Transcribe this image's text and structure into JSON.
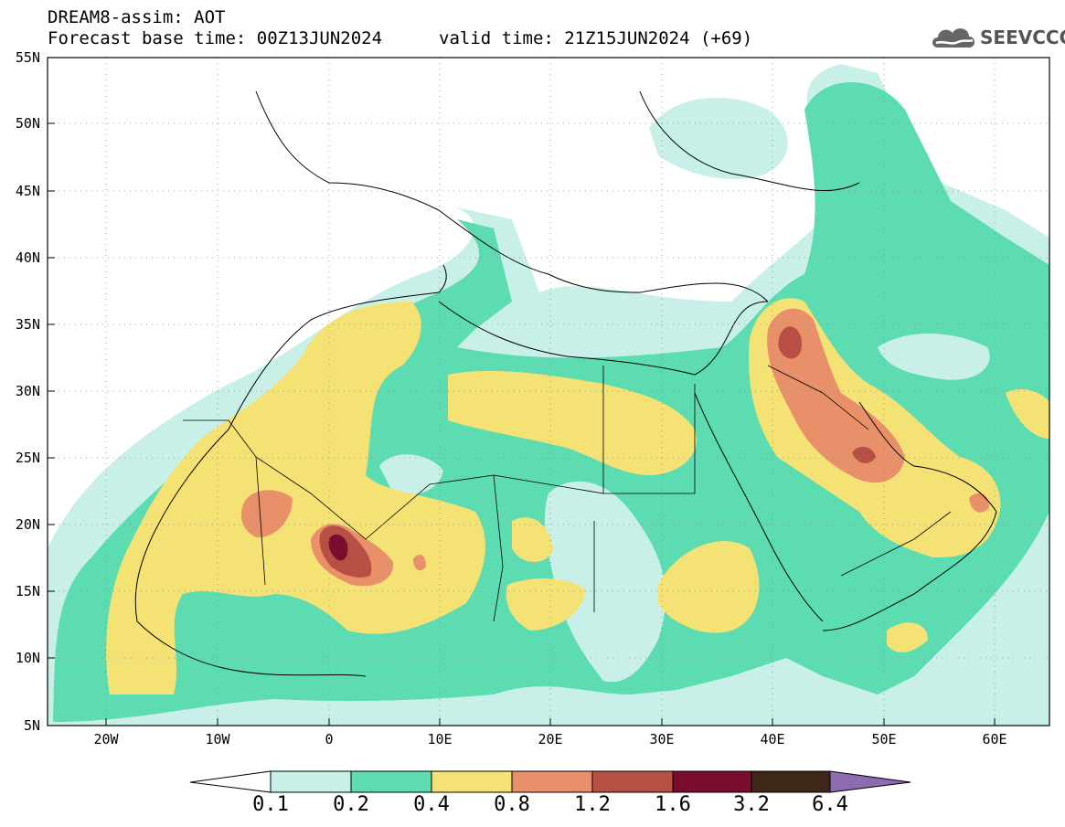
{
  "header": {
    "title": "DREAM8-assim: AOT",
    "base_time": "Forecast base time: 00Z13JUN2024",
    "valid_time": "valid time: 21Z15JUN2024 (+69)",
    "logo_text": "SEEVCCC"
  },
  "map": {
    "lon_range": [
      -25,
      65
    ],
    "lat_range": [
      5,
      55
    ],
    "lon_ticks": [
      {
        "value": -20,
        "label": "20W"
      },
      {
        "value": -10,
        "label": "10W"
      },
      {
        "value": 0,
        "label": "0"
      },
      {
        "value": 10,
        "label": "10E"
      },
      {
        "value": 20,
        "label": "20E"
      },
      {
        "value": 30,
        "label": "30E"
      },
      {
        "value": 40,
        "label": "40E"
      },
      {
        "value": 50,
        "label": "50E"
      },
      {
        "value": 60,
        "label": "60E"
      }
    ],
    "lat_ticks": [
      {
        "value": 5,
        "label": "5N"
      },
      {
        "value": 10,
        "label": "10N"
      },
      {
        "value": 15,
        "label": "15N"
      },
      {
        "value": 20,
        "label": "20N"
      },
      {
        "value": 25,
        "label": "25N"
      },
      {
        "value": 30,
        "label": "30N"
      },
      {
        "value": 35,
        "label": "35N"
      },
      {
        "value": 40,
        "label": "40N"
      },
      {
        "value": 45,
        "label": "45N"
      },
      {
        "value": 50,
        "label": "50N"
      },
      {
        "value": 55,
        "label": "55N"
      }
    ],
    "grid": true
  },
  "colorbar": {
    "levels": [
      "0.1",
      "0.2",
      "0.4",
      "0.8",
      "1.2",
      "1.6",
      "3.2",
      "6.4"
    ],
    "colors": [
      "#c8f0e8",
      "#5cdcb0",
      "#f5e275",
      "#e8906a",
      "#b84f45",
      "#7a0d2e",
      "#3e2618"
    ],
    "under_color": "#ffffff",
    "over_color": "#8c6bb0"
  },
  "colors": {
    "c1": "#c8f0e8",
    "c2": "#5cdcb0",
    "c3": "#f5e275",
    "c4": "#e8906a",
    "c5": "#b84f45",
    "c6": "#7a0d2e"
  }
}
